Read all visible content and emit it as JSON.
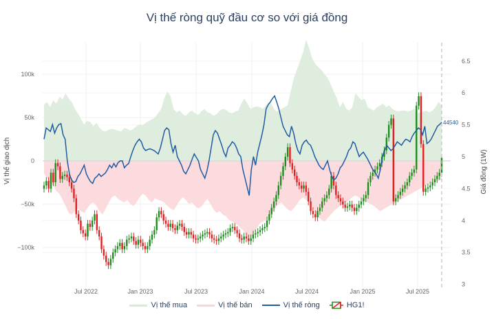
{
  "title": "Vị thế ròng quỹ đầu cơ so với giá đồng",
  "legend": {
    "items": [
      {
        "label": "Vị thế mua",
        "color": "#d9ead9"
      },
      {
        "label": "Vị thế bán",
        "color": "#fbd5d8"
      },
      {
        "label": "Vị thế ròng",
        "color": "#1f5aa0"
      },
      {
        "label": "HG1!",
        "color_up": "#1e8c1e",
        "color_down": "#e02020"
      }
    ]
  },
  "chart_data": {
    "type": "line",
    "title": "Vị thế ròng quỹ đầu cơ so với giá đồng",
    "xlabel": "",
    "ylabel": "Vị thế giao dịch",
    "y2label": "Giá đồng (1W)",
    "ylim": [
      -142000,
      148000
    ],
    "y2lim": [
      2.98,
      6.88
    ],
    "yticks": [
      {
        "v": 100000,
        "label": "100k"
      },
      {
        "v": 50000,
        "label": "50k"
      },
      {
        "v": 0,
        "label": "0"
      },
      {
        "v": -50000,
        "label": "−50k"
      },
      {
        "v": -100000,
        "label": "−100k"
      }
    ],
    "y2ticks": [
      "6.5",
      "6",
      "5.5",
      "5",
      "4.5",
      "4",
      "3.5",
      "3"
    ],
    "xticks": [
      "Jul 2022",
      "Jan 2023",
      "Jul 2023",
      "Jan 2024",
      "Jul 2024",
      "Jan 2025",
      "Jul 2025"
    ],
    "x_start": "2022-02",
    "x_end": "2025-09",
    "last_value_label": "44540",
    "legend_position": "bottom",
    "grid": true,
    "series": [
      {
        "name": "Vị thế mua",
        "type": "area",
        "color": "#d9ead9",
        "values": [
          65000,
          68000,
          62000,
          70000,
          66000,
          74000,
          71000,
          78000,
          72000,
          68000,
          60000,
          55000,
          48000,
          42000,
          46000,
          45000,
          40000,
          44000,
          38000,
          35000,
          34000,
          36000,
          37000,
          36000,
          35000,
          34000,
          38000,
          37000,
          35000,
          37000,
          40000,
          42000,
          41000,
          44000,
          46000,
          48000,
          50000,
          55000,
          60000,
          72000,
          80000,
          75000,
          60000,
          56000,
          58000,
          54000,
          52000,
          56000,
          58000,
          55000,
          53000,
          57000,
          60000,
          56000,
          55000,
          52000,
          54000,
          58000,
          60000,
          59000,
          56000,
          55000,
          57000,
          58000,
          66000,
          72000,
          66000,
          60000,
          62000,
          63000,
          62000,
          60000,
          64000,
          68000,
          64000,
          58000,
          57000,
          60000,
          62000,
          64000,
          80000,
          95000,
          105000,
          115000,
          125000,
          140000,
          130000,
          118000,
          112000,
          108000,
          105000,
          100000,
          96000,
          88000,
          80000,
          72000,
          62000,
          68000,
          60000,
          58000,
          62000,
          78000,
          74000,
          70000,
          72000,
          62000,
          60000,
          58000,
          62000,
          64000,
          66000,
          62000,
          64000,
          60000,
          58000,
          57000,
          58000,
          58000,
          57000,
          58000,
          60000,
          55000,
          56000,
          57000,
          58000,
          56000,
          58000,
          62000,
          68000,
          64000
        ],
        "note": "approximate, visual estimate"
      },
      {
        "name": "Vị thế bán",
        "type": "area",
        "color": "#fbd5d8",
        "values": [
          -15000,
          -20000,
          -25000,
          -28000,
          -35000,
          -38000,
          -45000,
          -52000,
          -60000,
          -62000,
          -58000,
          -55000,
          -58000,
          -60000,
          -55000,
          -50000,
          -48000,
          -52000,
          -58000,
          -62000,
          -55000,
          -48000,
          -42000,
          -40000,
          -44000,
          -46000,
          -48000,
          -45000,
          -50000,
          -52000,
          -48000,
          -42000,
          -38000,
          -40000,
          -45000,
          -48000,
          -43000,
          -45000,
          -46000,
          -48000,
          -52000,
          -55000,
          -57000,
          -52000,
          -46000,
          -42000,
          -45000,
          -50000,
          -48000,
          -52000,
          -55000,
          -53000,
          -48000,
          -44000,
          -50000,
          -56000,
          -60000,
          -58000,
          -62000,
          -64000,
          -68000,
          -70000,
          -72000,
          -75000,
          -78000,
          -82000,
          -88000,
          -90000,
          -85000,
          -78000,
          -72000,
          -70000,
          -68000,
          -65000,
          -60000,
          -55000,
          -50000,
          -48000,
          -52000,
          -56000,
          -58000,
          -55000,
          -50000,
          -45000,
          -42000,
          -45000,
          -48000,
          -52000,
          -60000,
          -65000,
          -68000,
          -70000,
          -66000,
          -62000,
          -58000,
          -55000,
          -52000,
          -50000,
          -48000,
          -45000,
          -42000,
          -40000,
          -42000,
          -44000,
          -46000,
          -48000,
          -50000,
          -52000,
          -55000,
          -58000,
          -56000,
          -54000,
          -52000,
          -50000,
          -48000,
          -46000,
          -44000,
          -42000,
          -40000,
          -38000,
          -36000,
          -34000,
          -32000,
          -30000,
          -28000,
          -26000,
          -25000,
          -24000,
          -23000,
          -22000
        ],
        "note": "approximate, visual estimate"
      },
      {
        "name": "Vị thế ròng",
        "type": "line",
        "color": "#1f5aa0",
        "values": [
          25000,
          38000,
          36000,
          34000,
          42000,
          32000,
          38000,
          42000,
          43000,
          30000,
          25000,
          0,
          -15000,
          -22000,
          -25000,
          -24000,
          -18000,
          -15000,
          -10000,
          -5000,
          -15000,
          -20000,
          -24000,
          -26000,
          -20000,
          -18000,
          -15000,
          -18000,
          -16000,
          -14000,
          -10000,
          -5000,
          -8000,
          -3000,
          -7000,
          -2000,
          0,
          0,
          -8000,
          -5000,
          -3000,
          5000,
          12000,
          18000,
          22000,
          25000,
          22000,
          15000,
          12000,
          13000,
          14000,
          13000,
          12000,
          10000,
          8000,
          15000,
          25000,
          35000,
          38000,
          36000,
          20000,
          10000,
          18000,
          5000,
          0,
          -5000,
          -12000,
          -15000,
          -10000,
          -5000,
          2000,
          8000,
          4000,
          0,
          -10000,
          -15000,
          -20000,
          -12000,
          0,
          15000,
          30000,
          35000,
          32000,
          25000,
          18000,
          10000,
          5000,
          15000,
          18000,
          22000,
          20000,
          15000,
          8000,
          5000,
          -10000,
          -20000,
          -30000,
          -40000,
          -10000,
          5000,
          -5000,
          10000,
          20000,
          30000,
          42000,
          60000,
          65000,
          68000,
          72000,
          75000,
          68000,
          60000,
          50000,
          40000,
          35000,
          30000,
          28000,
          40000,
          32000,
          20000,
          12000,
          8000,
          18000,
          22000,
          24000,
          20000,
          18000,
          12000,
          5000,
          0,
          -5000,
          -8000,
          -10000,
          -5000,
          0,
          -10000,
          -18000,
          -22000,
          -20000,
          -15000,
          -8000,
          -5000,
          0,
          5000,
          12000,
          15000,
          22000,
          20000,
          12000,
          5000,
          8000,
          10000,
          6000,
          2000,
          -3000,
          -8000,
          -12000,
          -15000,
          -20000,
          -10000,
          5000,
          12000,
          18000,
          15000,
          12000,
          14000,
          18000,
          22000,
          20000,
          18000,
          22000,
          25000,
          24000,
          22000,
          28000,
          32000,
          35000,
          38000,
          36000,
          30000,
          40000,
          20000,
          22000,
          25000,
          30000,
          35000,
          40000,
          42000,
          44540
        ],
        "note": "approximate, visual estimate"
      },
      {
        "name": "HG1!",
        "type": "candlestick",
        "axis": "y2",
        "color_up": "#1e8c1e",
        "color_down": "#e02020",
        "close": [
          4.55,
          4.62,
          4.5,
          4.75,
          4.6,
          4.9,
          4.85,
          4.65,
          4.7,
          4.72,
          4.68,
          4.6,
          4.5,
          4.35,
          4.1,
          4.0,
          3.85,
          3.8,
          3.75,
          3.95,
          3.9,
          4.0,
          4.1,
          3.85,
          3.75,
          3.55,
          3.45,
          3.35,
          3.3,
          3.4,
          3.5,
          3.55,
          3.6,
          3.65,
          3.55,
          3.6,
          3.7,
          3.72,
          3.75,
          3.68,
          3.62,
          3.7,
          3.65,
          3.6,
          3.55,
          3.6,
          3.7,
          3.78,
          3.85,
          4.05,
          4.15,
          4.1,
          4.0,
          3.95,
          3.9,
          3.95,
          3.88,
          3.85,
          3.92,
          3.95,
          3.9,
          3.82,
          3.78,
          3.82,
          3.78,
          3.72,
          3.7,
          3.72,
          3.75,
          3.78,
          3.8,
          3.82,
          3.78,
          3.72,
          3.7,
          3.68,
          3.72,
          3.75,
          3.78,
          3.8,
          3.82,
          3.88,
          3.9,
          3.85,
          3.8,
          3.72,
          3.7,
          3.75,
          3.72,
          3.68,
          3.72,
          3.78,
          3.8,
          3.82,
          3.85,
          3.88,
          3.9,
          4.0,
          4.1,
          4.2,
          4.3,
          4.4,
          4.55,
          4.7,
          4.85,
          5.0,
          5.15,
          4.9,
          4.8,
          4.7,
          4.6,
          4.55,
          4.5,
          4.55,
          4.45,
          4.3,
          4.15,
          4.1,
          4.05,
          4.15,
          4.2,
          4.3,
          4.35,
          4.4,
          4.5,
          4.7,
          4.55,
          4.4,
          4.35,
          4.3,
          4.25,
          4.2,
          4.22,
          4.25,
          4.2,
          4.15,
          4.2,
          4.25,
          4.3,
          4.35,
          4.4,
          4.6,
          4.7,
          4.75,
          4.8,
          4.85,
          4.9,
          5.0,
          5.1,
          5.3,
          5.5,
          5.6,
          4.3,
          4.35,
          4.4,
          4.45,
          4.5,
          4.55,
          4.6,
          4.7,
          4.75,
          4.8,
          5.8,
          5.95,
          5.2,
          4.45,
          4.5,
          4.52,
          4.55,
          4.6,
          4.65,
          4.7,
          4.75,
          4.98
        ],
        "note": "approximate weekly closes, visual estimate"
      }
    ]
  }
}
